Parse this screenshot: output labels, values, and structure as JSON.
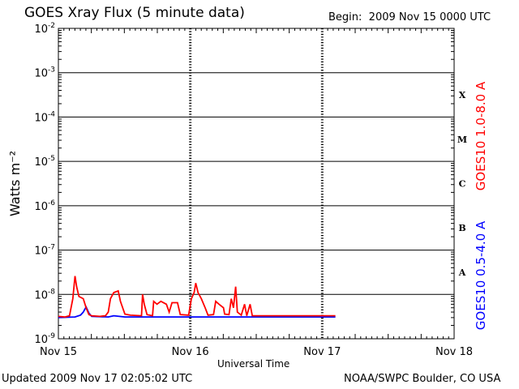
{
  "header": {
    "title": "GOES Xray Flux (5 minute data)",
    "begin_label": "Begin:",
    "begin_value": "2009 Nov 15 0000 UTC"
  },
  "footer": {
    "updated": "Updated 2009 Nov 17 02:05:02 UTC",
    "credit": "NOAA/SWPC Boulder, CO USA"
  },
  "colors": {
    "long_channel": "#ff0000",
    "short_channel": "#0000ff",
    "axis": "#000000"
  },
  "chart_data": {
    "type": "line",
    "title": "GOES Xray Flux (5 minute data)",
    "xlabel": "Universal Time",
    "ylabel": "Watts m⁻²",
    "yscale": "log",
    "ylim": [
      1e-09,
      0.01
    ],
    "x_ticks": [
      "Nov 15",
      "Nov 16",
      "Nov 17",
      "Nov 18"
    ],
    "y_ticks": [
      {
        "base": "10",
        "exp": "-9"
      },
      {
        "base": "10",
        "exp": "-8"
      },
      {
        "base": "10",
        "exp": "-7"
      },
      {
        "base": "10",
        "exp": "-6"
      },
      {
        "base": "10",
        "exp": "-5"
      },
      {
        "base": "10",
        "exp": "-4"
      },
      {
        "base": "10",
        "exp": "-3"
      },
      {
        "base": "10",
        "exp": "-2"
      }
    ],
    "flare_classes": [
      {
        "label": "A",
        "value": 1e-08
      },
      {
        "label": "B",
        "value": 1e-07
      },
      {
        "label": "C",
        "value": 1e-06
      },
      {
        "label": "M",
        "value": 1e-05
      },
      {
        "label": "X",
        "value": 0.0001
      }
    ],
    "series": [
      {
        "name": "GOES10 1.0-8.0 A",
        "color": "#ff0000",
        "points": [
          [
            0,
            3.2e-09
          ],
          [
            0.12,
            3.1e-09
          ],
          [
            0.2,
            3.3e-09
          ],
          [
            0.26,
            8e-09
          ],
          [
            0.3,
            2.6e-08
          ],
          [
            0.33,
            1.5e-08
          ],
          [
            0.37,
            9e-09
          ],
          [
            0.45,
            8e-09
          ],
          [
            0.5,
            5e-09
          ],
          [
            0.55,
            3.5e-09
          ],
          [
            0.6,
            3.3e-09
          ],
          [
            0.75,
            3.2e-09
          ],
          [
            0.85,
            3.3e-09
          ],
          [
            0.9,
            4e-09
          ],
          [
            0.94,
            8e-09
          ],
          [
            1.0,
            1.1e-08
          ],
          [
            1.08,
            1.2e-08
          ],
          [
            1.12,
            7e-09
          ],
          [
            1.2,
            3.6e-09
          ],
          [
            1.3,
            3.4e-09
          ],
          [
            1.5,
            3.3e-09
          ],
          [
            1.52,
            1e-08
          ],
          [
            1.55,
            6e-09
          ],
          [
            1.6,
            3.5e-09
          ],
          [
            1.7,
            3.3e-09
          ],
          [
            1.72,
            7e-09
          ],
          [
            1.78,
            6e-09
          ],
          [
            1.85,
            7e-09
          ],
          [
            1.95,
            6e-09
          ],
          [
            2.0,
            4e-09
          ],
          [
            2.05,
            6.5e-09
          ],
          [
            2.15,
            6.5e-09
          ],
          [
            2.2,
            3.5e-09
          ],
          [
            2.35,
            3.4e-09
          ],
          [
            2.4,
            8e-09
          ],
          [
            2.45,
            1.1e-08
          ],
          [
            2.48,
            1.8e-08
          ],
          [
            2.52,
            1.1e-08
          ],
          [
            2.58,
            8e-09
          ],
          [
            2.65,
            5e-09
          ],
          [
            2.7,
            3.4e-09
          ],
          [
            2.8,
            3.5e-09
          ],
          [
            2.84,
            7e-09
          ],
          [
            2.9,
            6e-09
          ],
          [
            2.98,
            5e-09
          ],
          [
            3.0,
            3.6e-09
          ],
          [
            3.08,
            3.5e-09
          ],
          [
            3.12,
            8e-09
          ],
          [
            3.16,
            5e-09
          ],
          [
            3.2,
            1.5e-08
          ],
          [
            3.23,
            4e-09
          ],
          [
            3.3,
            3.4e-09
          ],
          [
            3.36,
            6e-09
          ],
          [
            3.4,
            3.3e-09
          ],
          [
            3.46,
            6e-09
          ],
          [
            3.5,
            3.3e-09
          ],
          [
            3.65,
            3.3e-09
          ],
          [
            4.0,
            3.3e-09
          ],
          [
            5.0,
            3.3e-09
          ]
        ]
      },
      {
        "name": "GOES10 0.5-4.0 A",
        "color": "#0000ff",
        "points": [
          [
            0,
            3e-09
          ],
          [
            0.3,
            3.1e-09
          ],
          [
            0.4,
            3.4e-09
          ],
          [
            0.45,
            4e-09
          ],
          [
            0.5,
            5.2e-09
          ],
          [
            0.55,
            3.8e-09
          ],
          [
            0.6,
            3.2e-09
          ],
          [
            0.9,
            3.1e-09
          ],
          [
            1.0,
            3.3e-09
          ],
          [
            1.2,
            3.1e-09
          ],
          [
            3.0,
            3.1e-09
          ],
          [
            5.0,
            3.1e-09
          ]
        ]
      }
    ]
  }
}
